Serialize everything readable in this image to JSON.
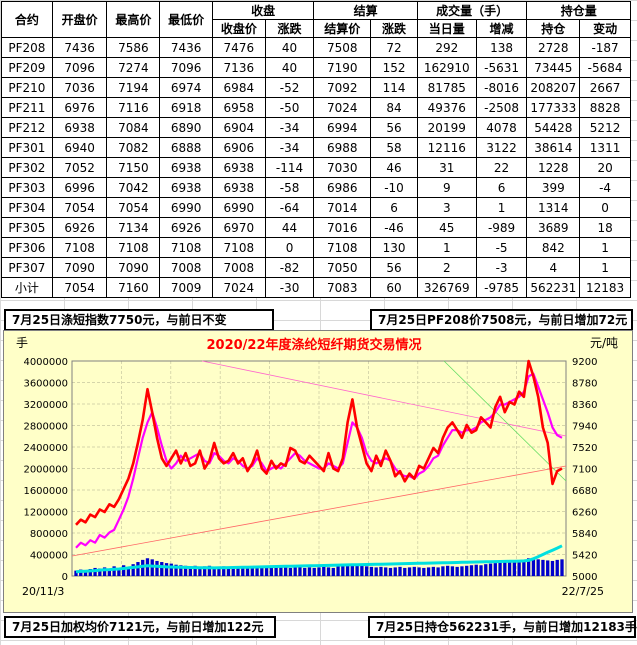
{
  "table": {
    "header_row1": [
      "合约",
      "开盘价",
      "最高价",
      "最低价",
      "收盘",
      "结算",
      "成交量（手）",
      "持仓量"
    ],
    "header_row2": [
      "收盘价",
      "涨跌",
      "结算价",
      "涨跌",
      "当日量",
      "增减",
      "持仓",
      "变动"
    ],
    "rows": [
      [
        "PF208",
        "7436",
        "7586",
        "7436",
        "7476",
        "40",
        "7508",
        "72",
        "292",
        "138",
        "2728",
        "-187"
      ],
      [
        "PF209",
        "7096",
        "7274",
        "7096",
        "7136",
        "40",
        "7190",
        "152",
        "162910",
        "-5631",
        "73445",
        "-5684"
      ],
      [
        "PF210",
        "7036",
        "7194",
        "6974",
        "6984",
        "-52",
        "7092",
        "114",
        "81785",
        "-8016",
        "208207",
        "2667"
      ],
      [
        "PF211",
        "6976",
        "7116",
        "6918",
        "6958",
        "-50",
        "7024",
        "84",
        "49376",
        "-2508",
        "177333",
        "8828"
      ],
      [
        "PF212",
        "6938",
        "7084",
        "6890",
        "6904",
        "-34",
        "6994",
        "56",
        "20199",
        "4078",
        "54428",
        "5212"
      ],
      [
        "PF301",
        "6940",
        "7082",
        "6888",
        "6906",
        "-34",
        "6988",
        "58",
        "12116",
        "3122",
        "38614",
        "1311"
      ],
      [
        "PF302",
        "7052",
        "7150",
        "6938",
        "6938",
        "-114",
        "7030",
        "46",
        "31",
        "22",
        "1228",
        "20"
      ],
      [
        "PF303",
        "6996",
        "7042",
        "6938",
        "6938",
        "-58",
        "6986",
        "-10",
        "9",
        "6",
        "399",
        "-4"
      ],
      [
        "PF304",
        "7054",
        "7054",
        "6990",
        "6990",
        "-64",
        "7014",
        "6",
        "3",
        "1",
        "1314",
        "0"
      ],
      [
        "PF305",
        "6926",
        "7134",
        "6926",
        "6970",
        "44",
        "7016",
        "-46",
        "45",
        "-989",
        "3689",
        "18"
      ],
      [
        "PF306",
        "7108",
        "7108",
        "7108",
        "7108",
        "0",
        "7108",
        "130",
        "1",
        "-5",
        "842",
        "1"
      ],
      [
        "PF307",
        "7090",
        "7090",
        "7008",
        "7008",
        "-82",
        "7050",
        "56",
        "2",
        "-3",
        "4",
        "1"
      ],
      [
        "小计",
        "7054",
        "7160",
        "7009",
        "7024",
        "-30",
        "7083",
        "60",
        "326769",
        "-9785",
        "562231",
        "12183"
      ]
    ]
  },
  "notes": {
    "top_left": "7月25日涤短指数7750元，与前日不变",
    "top_right": "7月25日PF208价7508元，与前日增加72元",
    "bottom_left": "7月25日加权均价7121元，与前日增加122元",
    "bottom_right": "7月25日持仓562231手，与前日增加12183手"
  },
  "colors": {
    "chart_bg": "#ffffc8",
    "price_red": "#ff0000",
    "price_magenta": "#ff00ff",
    "price_green": "#66bb44",
    "volume_blue": "#0000cc",
    "oi_cyan": "#00e0e0"
  },
  "chart_data": {
    "type": "line",
    "title": "2020/22年度涤纶短纤期货交易情况",
    "left_axis_unit": "手",
    "right_axis_unit": "元/吨",
    "left_ticks": [
      "4000000",
      "3600000",
      "3200000",
      "2800000",
      "2400000",
      "2000000",
      "1600000",
      "1200000",
      "800000",
      "400000",
      "0"
    ],
    "right_ticks": [
      "9200",
      "8780",
      "8360",
      "7940",
      "7520",
      "7100",
      "6680",
      "6260",
      "5840",
      "5420",
      "5000"
    ],
    "left_ylim": [
      0,
      4000000
    ],
    "right_ylim": [
      5000,
      9200
    ],
    "x_start_label": "20/11/3",
    "x_end_label": "22/7/25",
    "series": [
      {
        "name": "",
        "axis": "right",
        "color": "#ff0000",
        "values": [
          6000,
          6100,
          6050,
          6200,
          6150,
          6300,
          6250,
          6400,
          6350,
          6500,
          6700,
          6900,
          7200,
          7600,
          8050,
          8650,
          8200,
          7700,
          7300,
          7150,
          7300,
          7450,
          7200,
          7400,
          7150,
          7200,
          7450,
          7100,
          7250,
          7600,
          7300,
          7200,
          7250,
          7400,
          7200,
          7300,
          7050,
          7200,
          7450,
          7100,
          7000,
          7250,
          7100,
          7200,
          7150,
          7500,
          7450,
          7250,
          7200,
          7350,
          7250,
          7150,
          7050,
          7400,
          7100,
          7050,
          7300,
          8000,
          8450,
          7900,
          7550,
          7200,
          7050,
          7350,
          7150,
          7450,
          7250,
          6950,
          7050,
          6850,
          7000,
          6900,
          7150,
          7100,
          7300,
          7500,
          7400,
          7700,
          7900,
          8000,
          7850,
          7700,
          7950,
          7800,
          7850,
          8100,
          8000,
          7900,
          8300,
          8500,
          8200,
          8400,
          8350,
          8600,
          8500,
          9200,
          8900,
          8500,
          7900,
          7600,
          6800,
          7050,
          7100
        ]
      },
      {
        "name": "",
        "axis": "right",
        "color": "#ff00ff",
        "values": [
          5550,
          5650,
          5600,
          5700,
          5650,
          5800,
          5750,
          5850,
          5900,
          6100,
          6300,
          6550,
          6900,
          7300,
          7700,
          8000,
          8200,
          7900,
          7550,
          7250,
          7100,
          7200,
          7350,
          7250,
          7300,
          7350,
          7400,
          7250,
          7200,
          7400,
          7350,
          7250,
          7200,
          7300,
          7250,
          7150,
          7100,
          7150,
          7300,
          7200,
          7050,
          7100,
          7150,
          7100,
          7200,
          7300,
          7400,
          7350,
          7250,
          7200,
          7150,
          7100,
          7100,
          7200,
          7150,
          7100,
          7200,
          7600,
          8000,
          7900,
          7700,
          7400,
          7250,
          7200,
          7250,
          7300,
          7250,
          7100,
          7000,
          6950,
          6950,
          6900,
          7000,
          7050,
          7150,
          7300,
          7350,
          7550,
          7700,
          7850,
          7850,
          7800,
          7850,
          7850,
          7900,
          8000,
          8050,
          8100,
          8200,
          8350,
          8350,
          8400,
          8450,
          8500,
          8600,
          8900,
          8950,
          8700,
          8450,
          8200,
          7900,
          7750,
          7700
        ]
      },
      {
        "name": "",
        "axis": "left",
        "color": "#0000cc",
        "values": [
          100000,
          120000,
          110000,
          130000,
          150000,
          140000,
          160000,
          120000,
          180000,
          140000,
          200000,
          160000,
          220000,
          260000,
          300000,
          330000,
          310000,
          280000,
          260000,
          240000,
          230000,
          210000,
          200000,
          190000,
          180000,
          190000,
          170000,
          180000,
          190000,
          170000,
          160000,
          180000,
          170000,
          160000,
          170000,
          180000,
          160000,
          170000,
          150000,
          160000,
          170000,
          150000,
          160000,
          170000,
          160000,
          150000,
          160000,
          170000,
          150000,
          160000,
          150000,
          160000,
          170000,
          160000,
          150000,
          180000,
          190000,
          200000,
          220000,
          210000,
          190000,
          180000,
          170000,
          160000,
          170000,
          160000,
          150000,
          160000,
          170000,
          150000,
          160000,
          170000,
          160000,
          150000,
          160000,
          170000,
          160000,
          180000,
          190000,
          180000,
          170000,
          180000,
          190000,
          200000,
          210000,
          200000,
          220000,
          230000,
          240000,
          250000,
          260000,
          280000,
          270000,
          290000,
          300000,
          330000,
          340000,
          310000,
          300000,
          290000,
          280000,
          300000,
          310000
        ]
      },
      {
        "name": "",
        "axis": "left",
        "color": "#00e0e0",
        "values": [
          80000,
          85000,
          90000,
          95000,
          100000,
          110000,
          115000,
          120000,
          125000,
          130000,
          140000,
          150000,
          160000,
          170000,
          180000,
          190000,
          185000,
          180000,
          175000,
          170000,
          168000,
          165000,
          163000,
          160000,
          158000,
          156000,
          155000,
          153000,
          152000,
          150000,
          152000,
          154000,
          156000,
          158000,
          160000,
          162000,
          164000,
          166000,
          168000,
          170000,
          172000,
          174000,
          176000,
          178000,
          180000,
          182000,
          184000,
          186000,
          188000,
          190000,
          192000,
          194000,
          196000,
          198000,
          200000,
          202000,
          204000,
          206000,
          208000,
          210000,
          212000,
          214000,
          216000,
          218000,
          220000,
          222000,
          224000,
          226000,
          228000,
          230000,
          232000,
          234000,
          236000,
          238000,
          240000,
          242000,
          244000,
          246000,
          248000,
          250000,
          252000,
          254000,
          256000,
          258000,
          260000,
          262000,
          264000,
          266000,
          268000,
          270000,
          272000,
          274000,
          276000,
          278000,
          280000,
          290000,
          320000,
          360000,
          400000,
          440000,
          480000,
          520000,
          562231
        ]
      }
    ]
  }
}
